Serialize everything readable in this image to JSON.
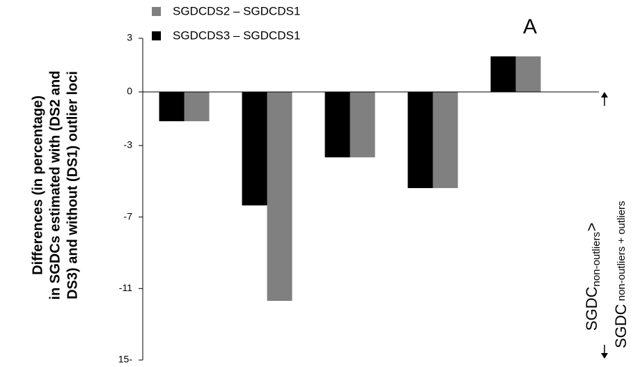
{
  "chart_data": {
    "type": "bar",
    "y_label": [
      "Differences (in percentage)",
      "in SGDCs estimated with  (DS2 and",
      "DS3) and without  (DS1) outlier loci"
    ],
    "annotations": [
      "A",
      "SGDC",
      "non-outliers",
      ">",
      "SGDC",
      " non-outliers + outliers"
    ],
    "categories": [
      null,
      null,
      null,
      null,
      null
    ],
    "series": [
      {
        "name": "SGDCDS2 – SGDCDS1",
        "color": "#808080",
        "values": [
          -1.64,
          -11.69,
          -3.66,
          -5.38,
          1.99
        ]
      },
      {
        "name": "SGDCDS3 – SGDCDS1",
        "color": "#000000",
        "values": [
          -1.64,
          -6.35,
          -3.66,
          -5.38,
          1.99
        ]
      }
    ],
    "ylim": [
      -15,
      3
    ],
    "yticks": [
      3,
      0,
      -3,
      -7,
      -11,
      {
        "value": -15,
        "label": "15-"
      }
    ],
    "grid": false
  }
}
